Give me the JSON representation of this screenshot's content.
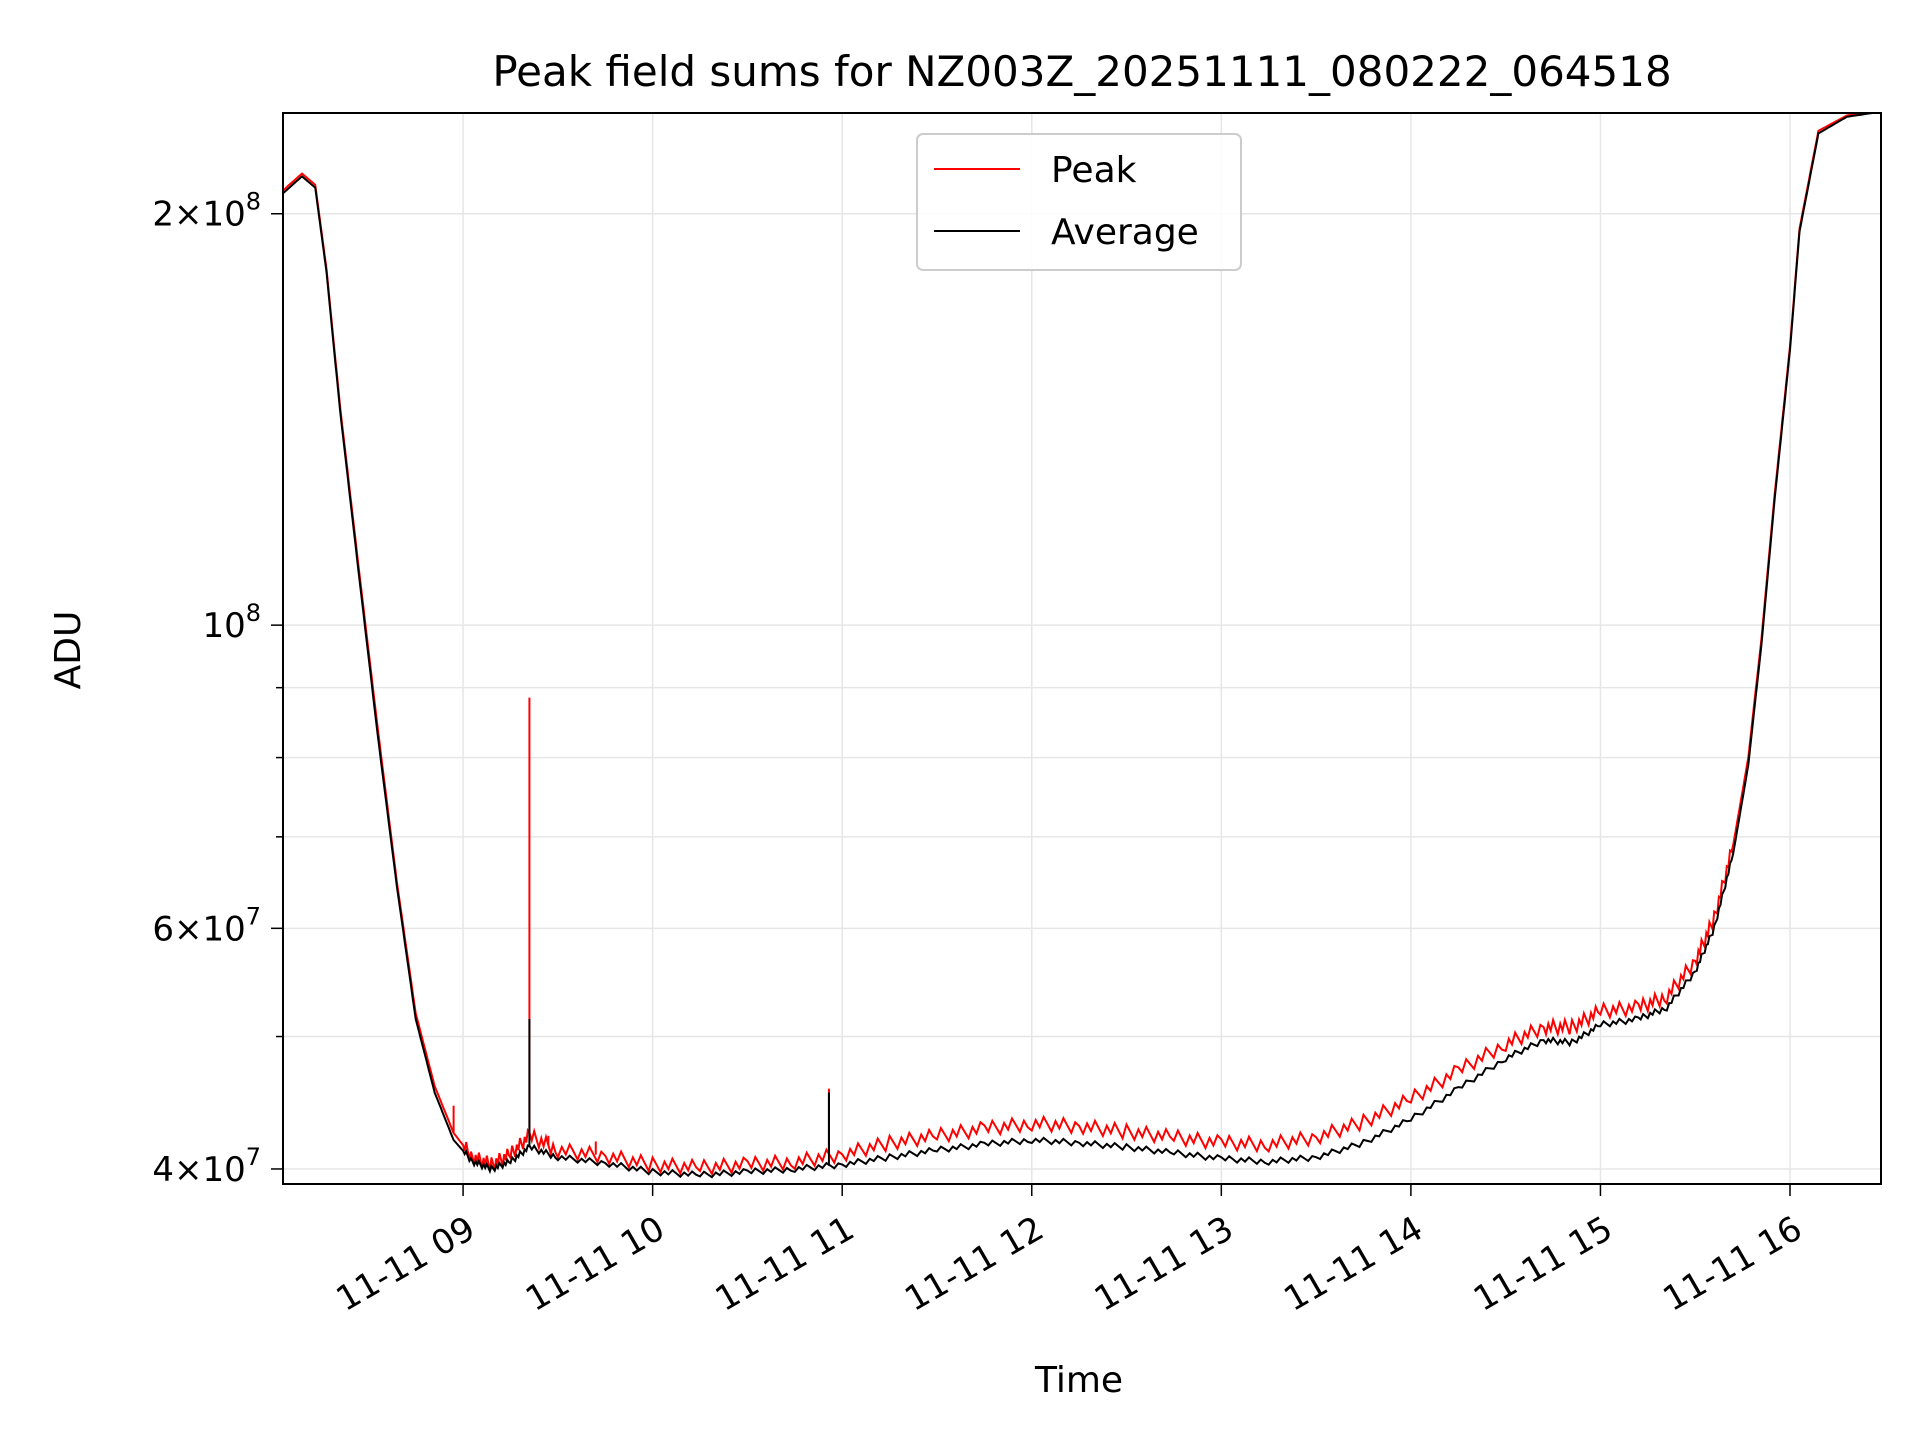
{
  "chart_data": {
    "type": "line",
    "title": "Peak field sums for NZ003Z_20251111_080222_064518",
    "xlabel": "Time",
    "ylabel": "ADU",
    "y_scale": "log",
    "ylim": [
      39000000,
      237000000
    ],
    "xlim": [
      8.05,
      16.48
    ],
    "x_unit": "hour of day on 2025-11-11",
    "grid": true,
    "legend_location": "upper center",
    "x_ticks": [
      {
        "value": 9,
        "label": "11-11 09"
      },
      {
        "value": 10,
        "label": "11-11 10"
      },
      {
        "value": 11,
        "label": "11-11 11"
      },
      {
        "value": 12,
        "label": "11-11 12"
      },
      {
        "value": 13,
        "label": "11-11 13"
      },
      {
        "value": 14,
        "label": "11-11 14"
      },
      {
        "value": 15,
        "label": "11-11 15"
      },
      {
        "value": 16,
        "label": "11-11 16"
      }
    ],
    "y_ticks": [
      {
        "value": 40000000,
        "mant": "4",
        "exp": "7"
      },
      {
        "value": 60000000,
        "mant": "6",
        "exp": "7"
      },
      {
        "value": 100000000,
        "mant": "",
        "exp": "8"
      },
      {
        "value": 200000000,
        "mant": "2",
        "exp": "8"
      }
    ],
    "y_minor_ticks": [
      50000000,
      70000000,
      80000000,
      90000000
    ],
    "series": [
      {
        "name": "Peak",
        "color": "#ff0000",
        "x": [
          8.05,
          8.15,
          8.22,
          8.28,
          8.35,
          8.45,
          8.55,
          8.65,
          8.75,
          8.85,
          8.95,
          9.05,
          9.15,
          9.25,
          9.35,
          9.5,
          9.75,
          10.0,
          10.25,
          10.5,
          10.75,
          11.0,
          11.25,
          11.5,
          11.75,
          12.0,
          12.25,
          12.5,
          12.75,
          13.0,
          13.25,
          13.5,
          13.75,
          14.0,
          14.25,
          14.5,
          14.7,
          14.85,
          15.0,
          15.2,
          15.35,
          15.5,
          15.6,
          15.7,
          15.78,
          15.85,
          15.92,
          16.0,
          16.05,
          16.15,
          16.3,
          16.48
        ],
        "y": [
          208000000,
          214000000,
          210000000,
          182000000,
          145000000,
          110000000,
          84000000,
          65000000,
          52000000,
          46000000,
          42500000,
          40800000,
          40300000,
          41000000,
          42300000,
          41300000,
          40900000,
          40300000,
          40100000,
          40300000,
          40500000,
          41000000,
          41800000,
          42300000,
          42800000,
          43200000,
          43000000,
          42600000,
          42200000,
          41800000,
          41700000,
          42200000,
          43300000,
          45000000,
          47200000,
          49400000,
          50800000,
          50800000,
          52200000,
          52500000,
          53500000,
          56800000,
          61000000,
          69000000,
          80000000,
          98000000,
          125000000,
          160000000,
          195000000,
          230000000,
          236000000,
          238000000
        ],
        "spikes": [
          {
            "x": 9.35,
            "y": 88500000
          },
          {
            "x": 10.93,
            "y": 45800000
          },
          {
            "x": 8.95,
            "y": 44500000
          },
          {
            "x": 9.45,
            "y": 42300000
          },
          {
            "x": 9.7,
            "y": 41900000
          }
        ]
      },
      {
        "name": "Average",
        "color": "#000000",
        "x": [
          8.05,
          8.15,
          8.22,
          8.28,
          8.35,
          8.45,
          8.55,
          8.65,
          8.75,
          8.85,
          8.95,
          9.05,
          9.15,
          9.25,
          9.35,
          9.5,
          9.75,
          10.0,
          10.25,
          10.5,
          10.75,
          11.0,
          11.25,
          11.5,
          11.75,
          12.0,
          12.25,
          12.5,
          12.75,
          13.0,
          13.25,
          13.5,
          13.75,
          14.0,
          14.25,
          14.5,
          14.7,
          14.85,
          15.0,
          15.2,
          15.35,
          15.5,
          15.6,
          15.7,
          15.78,
          15.85,
          15.92,
          16.0,
          16.05,
          16.15,
          16.3,
          16.48
        ],
        "y": [
          207000000,
          213000000,
          209000000,
          181000000,
          144000000,
          109000000,
          83000000,
          64500000,
          51500000,
          45500000,
          42000000,
          40500000,
          40000000,
          40500000,
          41500000,
          40800000,
          40400000,
          39800000,
          39600000,
          39800000,
          40000000,
          40300000,
          40800000,
          41300000,
          41700000,
          42000000,
          41800000,
          41500000,
          41100000,
          40700000,
          40500000,
          40800000,
          41800000,
          43500000,
          45800000,
          48200000,
          49700000,
          49500000,
          51000000,
          51500000,
          52500000,
          55800000,
          60000000,
          68000000,
          79000000,
          97000000,
          124000000,
          159000000,
          194000000,
          229000000,
          235500000,
          237500000
        ],
        "spikes": [
          {
            "x": 9.35,
            "y": 51500000
          },
          {
            "x": 10.93,
            "y": 45500000
          }
        ]
      }
    ]
  }
}
